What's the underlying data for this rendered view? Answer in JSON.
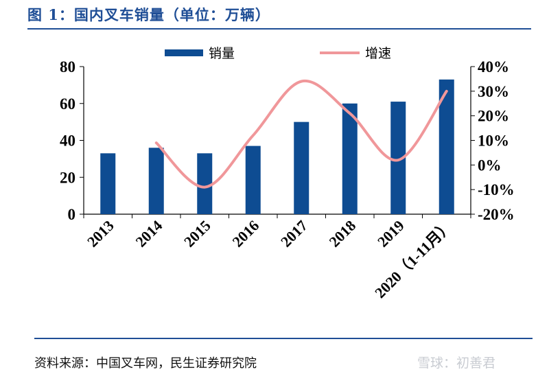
{
  "header": {
    "title": "图 1：国内叉车销量（单位：万辆）"
  },
  "footer": {
    "source": "资料来源：中国叉车网，民生证券研究院",
    "watermark": "雪球：初善君"
  },
  "colors": {
    "bar": "#0e4c92",
    "line": "#f0979a",
    "rule": "#1f4e96"
  },
  "chart_data": {
    "type": "bar",
    "title": "国内叉车销量（单位：万辆）",
    "categories": [
      "2013",
      "2014",
      "2015",
      "2016",
      "2017",
      "2018",
      "2019",
      "2020（1-11月）"
    ],
    "series": [
      {
        "name": "销量",
        "type": "bar",
        "axis": "left",
        "values": [
          33,
          36,
          33,
          37,
          50,
          60,
          61,
          73
        ]
      },
      {
        "name": "增速",
        "type": "line",
        "axis": "right",
        "values": [
          null,
          0.09,
          -0.09,
          0.12,
          0.34,
          0.21,
          0.02,
          0.3
        ]
      }
    ],
    "left_axis": {
      "min": 0,
      "max": 80,
      "ticks": [
        "0",
        "20",
        "40",
        "60",
        "80"
      ]
    },
    "right_axis": {
      "min": -0.2,
      "max": 0.4,
      "ticks": [
        "-20%",
        "-10%",
        "0%",
        "10%",
        "20%",
        "30%",
        "40%"
      ]
    },
    "legend": {
      "position": "top",
      "labels": [
        "销量",
        "增速"
      ]
    },
    "grid": false
  }
}
